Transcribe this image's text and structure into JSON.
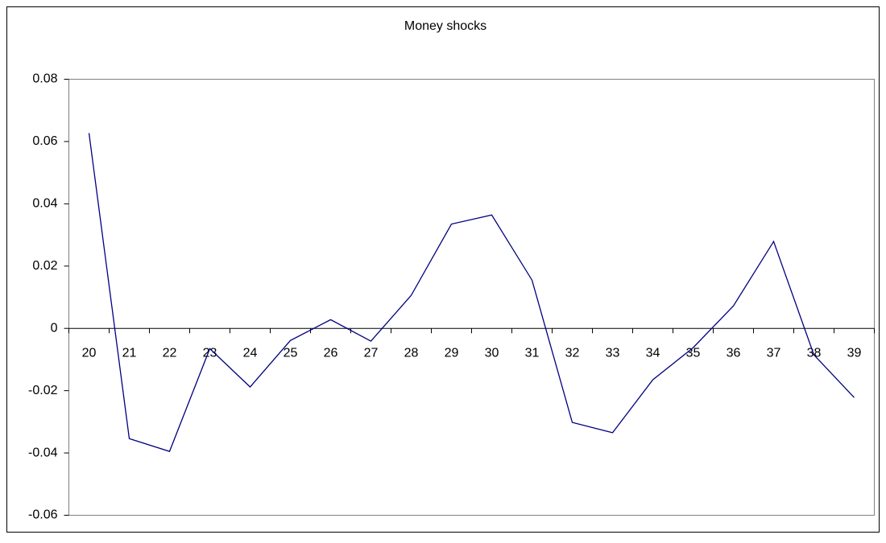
{
  "chart_data": {
    "type": "line",
    "title": "Money shocks",
    "categories": [
      "20",
      "21",
      "22",
      "23",
      "24",
      "25",
      "26",
      "27",
      "28",
      "29",
      "30",
      "31",
      "32",
      "33",
      "34",
      "35",
      "36",
      "37",
      "38",
      "39"
    ],
    "series": [
      {
        "color": "#000080",
        "values": [
          0.0627,
          -0.0354,
          -0.0395,
          -0.0065,
          -0.0188,
          -0.0039,
          0.0028,
          -0.0041,
          0.0106,
          0.0335,
          0.0364,
          0.0155,
          -0.0302,
          -0.0335,
          -0.0165,
          -0.0062,
          0.0072,
          0.0279,
          -0.0085,
          -0.0222
        ]
      }
    ],
    "ylim": [
      -0.06,
      0.08
    ],
    "yticks": [
      -0.06,
      -0.04,
      -0.02,
      0,
      0.02,
      0.04,
      0.06,
      0.08
    ],
    "grid": false
  }
}
